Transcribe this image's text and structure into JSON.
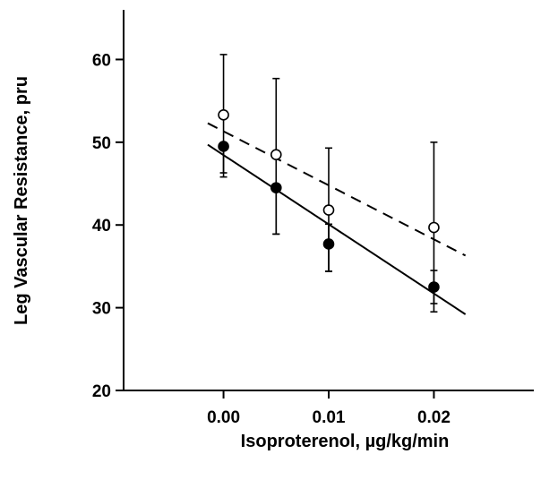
{
  "chart_data": {
    "type": "scatter",
    "xlabel": "Isoproterenol, µg/kg/min",
    "ylabel": "Leg Vascular Resistance, pru",
    "xlim": [
      -0.0095,
      0.0295
    ],
    "ylim": [
      20,
      66
    ],
    "x_ticks": [
      0.0,
      0.01,
      0.02
    ],
    "x_tick_labels": [
      "0.00",
      "0.01",
      "0.02"
    ],
    "y_ticks": [
      20,
      30,
      40,
      50,
      60
    ],
    "y_tick_labels": [
      "20",
      "30",
      "40",
      "50",
      "60"
    ],
    "grid": false,
    "series": [
      {
        "marker": "filled-circle",
        "x": [
          0.0,
          0.005,
          0.01,
          0.02
        ],
        "y": [
          49.5,
          44.5,
          37.7,
          32.5
        ],
        "error_low": [
          45.8,
          38.9,
          34.4,
          30.5
        ],
        "error_high": [
          49.5,
          44.5,
          40.1,
          34.5
        ],
        "fit_line": {
          "style": "solid",
          "x": [
            -0.0015,
            0.023
          ],
          "y": [
            49.7,
            29.2
          ]
        }
      },
      {
        "marker": "open-circle",
        "x": [
          0.0,
          0.005,
          0.01,
          0.02
        ],
        "y": [
          53.3,
          48.5,
          41.8,
          39.7
        ],
        "error_low": [
          46.3,
          38.9,
          34.4,
          29.5
        ],
        "error_high": [
          60.6,
          57.7,
          49.3,
          50.0
        ],
        "fit_line": {
          "style": "dashed",
          "x": [
            -0.0015,
            0.023
          ],
          "y": [
            52.3,
            36.3
          ]
        }
      }
    ]
  }
}
